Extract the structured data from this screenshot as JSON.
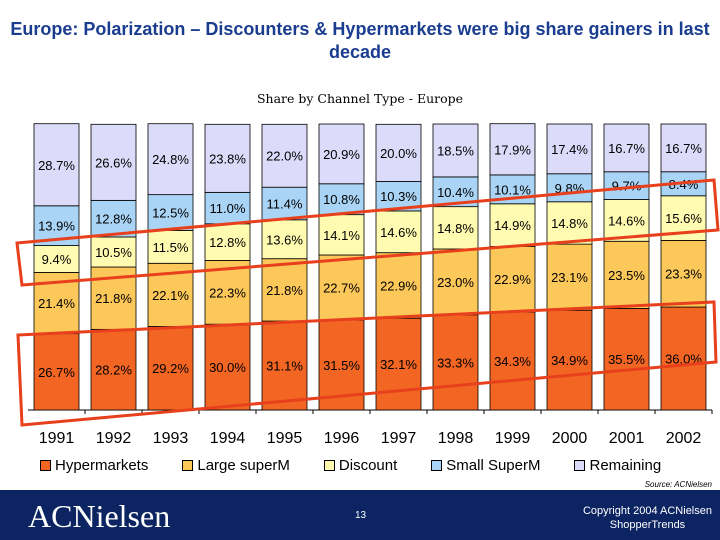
{
  "title": "Europe: Polarization – Discounters & Hypermarkets were big share gainers in last decade",
  "chart_data": {
    "type": "bar",
    "stacked": true,
    "title": "Share by Channel Type - Europe",
    "categories": [
      "1991",
      "1992",
      "1993",
      "1994",
      "1995",
      "1996",
      "1997",
      "1998",
      "1999",
      "2000",
      "2001",
      "2002"
    ],
    "series": [
      {
        "name": "Hypermarkets",
        "color": "#f26522",
        "values": [
          26.7,
          28.2,
          29.2,
          30.0,
          31.1,
          31.5,
          32.1,
          33.3,
          34.3,
          34.9,
          35.5,
          36.0
        ]
      },
      {
        "name": "Large superM",
        "color": "#fdc85a",
        "values": [
          21.4,
          21.8,
          22.1,
          22.3,
          21.8,
          22.7,
          22.9,
          23.0,
          22.9,
          23.1,
          23.5,
          23.3
        ]
      },
      {
        "name": "Discount",
        "color": "#fffbb0",
        "values": [
          9.4,
          10.5,
          11.5,
          12.8,
          13.6,
          14.1,
          14.6,
          14.8,
          14.9,
          14.8,
          14.6,
          15.6
        ]
      },
      {
        "name": "Small SuperM",
        "color": "#a9d4f5",
        "values": [
          13.9,
          12.8,
          12.5,
          11.0,
          11.4,
          10.8,
          10.3,
          10.4,
          10.1,
          9.8,
          9.7,
          8.4
        ]
      },
      {
        "name": "Remaining",
        "color": "#dcdcfa",
        "values": [
          28.7,
          26.6,
          24.8,
          23.8,
          22.0,
          20.9,
          20.0,
          18.5,
          17.9,
          17.4,
          16.7,
          16.7
        ]
      }
    ],
    "legend": "bottom",
    "ylim": [
      0,
      100
    ]
  },
  "source": "Source: ACNielsen",
  "footer": {
    "logo": "ACNielsen",
    "page": "13",
    "copyright": "Copyright 2004 ACNielsen",
    "product": "ShopperTrends"
  }
}
